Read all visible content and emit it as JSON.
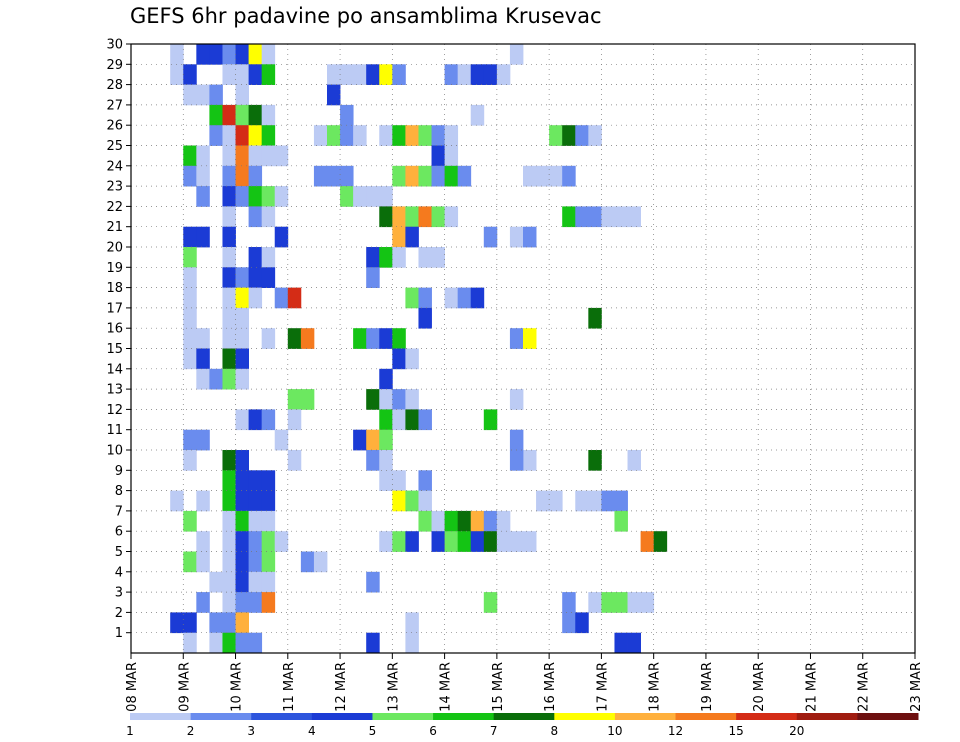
{
  "chart_data": {
    "type": "heatmap",
    "title": "GEFS 6hr padavine po ansamblima Krusevac",
    "xlabel": "",
    "ylabel": "",
    "y_ticks": [
      1,
      2,
      3,
      4,
      5,
      6,
      7,
      8,
      9,
      10,
      11,
      12,
      13,
      14,
      15,
      16,
      17,
      18,
      19,
      20,
      21,
      22,
      23,
      24,
      25,
      26,
      27,
      28,
      29,
      30
    ],
    "x_ticks": [
      "08 MAR",
      "09 MAR",
      "10 MAR",
      "11 MAR",
      "12 MAR",
      "13 MAR",
      "14 MAR",
      "15 MAR",
      "16 MAR",
      "17 MAR",
      "18 MAR",
      "19 MAR",
      "20 MAR",
      "21 MAR",
      "22 MAR",
      "23 MAR"
    ],
    "x_range": [
      0,
      60
    ],
    "y_range": [
      0,
      30
    ],
    "grid": true,
    "legend_position": "bottom",
    "color_scale": {
      "colors": [
        "#bccbf4",
        "#6a8cee",
        "#2d55dd",
        "#1b3bd5",
        "#6ce860",
        "#14c414",
        "#0a6e0a",
        "#ffff00",
        "#ffb03c",
        "#f57a1e",
        "#d42c16",
        "#a01c10",
        "#6e1010"
      ],
      "labels": [
        "1",
        "2",
        "3",
        "4",
        "5",
        "6",
        "7",
        "8",
        "10",
        "12",
        "15",
        "20"
      ]
    },
    "cells": [
      [
        3,
        30,
        0
      ],
      [
        5,
        30,
        3
      ],
      [
        6,
        30,
        3
      ],
      [
        7,
        30,
        1
      ],
      [
        8,
        30,
        3
      ],
      [
        9,
        30,
        7
      ],
      [
        10,
        30,
        0
      ],
      [
        29,
        30,
        0
      ],
      [
        3,
        29,
        0
      ],
      [
        4,
        29,
        3
      ],
      [
        7,
        29,
        0
      ],
      [
        8,
        29,
        0
      ],
      [
        9,
        29,
        3
      ],
      [
        10,
        29,
        5
      ],
      [
        15,
        29,
        0
      ],
      [
        16,
        29,
        0
      ],
      [
        17,
        29,
        0
      ],
      [
        18,
        29,
        3
      ],
      [
        19,
        29,
        7
      ],
      [
        20,
        29,
        1
      ],
      [
        24,
        29,
        1
      ],
      [
        25,
        29,
        0
      ],
      [
        26,
        29,
        3
      ],
      [
        27,
        29,
        3
      ],
      [
        28,
        29,
        0
      ],
      [
        4,
        28,
        0
      ],
      [
        5,
        28,
        0
      ],
      [
        6,
        28,
        1
      ],
      [
        8,
        28,
        0
      ],
      [
        15,
        28,
        3
      ],
      [
        6,
        27,
        5
      ],
      [
        7,
        27,
        10
      ],
      [
        8,
        27,
        4
      ],
      [
        9,
        27,
        6
      ],
      [
        10,
        27,
        0
      ],
      [
        16,
        27,
        1
      ],
      [
        26,
        27,
        0
      ],
      [
        6,
        26,
        1
      ],
      [
        7,
        26,
        0
      ],
      [
        8,
        26,
        10
      ],
      [
        9,
        26,
        7
      ],
      [
        10,
        26,
        5
      ],
      [
        14,
        26,
        0
      ],
      [
        15,
        26,
        4
      ],
      [
        16,
        26,
        1
      ],
      [
        17,
        26,
        0
      ],
      [
        19,
        26,
        0
      ],
      [
        20,
        26,
        5
      ],
      [
        21,
        26,
        8
      ],
      [
        22,
        26,
        4
      ],
      [
        23,
        26,
        1
      ],
      [
        24,
        26,
        0
      ],
      [
        32,
        26,
        4
      ],
      [
        33,
        26,
        6
      ],
      [
        34,
        26,
        1
      ],
      [
        35,
        26,
        0
      ],
      [
        4,
        25,
        5
      ],
      [
        5,
        25,
        0
      ],
      [
        7,
        25,
        0
      ],
      [
        8,
        25,
        9
      ],
      [
        9,
        25,
        0
      ],
      [
        10,
        25,
        0
      ],
      [
        11,
        25,
        0
      ],
      [
        23,
        25,
        3
      ],
      [
        24,
        25,
        0
      ],
      [
        4,
        24,
        1
      ],
      [
        5,
        24,
        0
      ],
      [
        7,
        24,
        1
      ],
      [
        8,
        24,
        9
      ],
      [
        9,
        24,
        1
      ],
      [
        14,
        24,
        1
      ],
      [
        15,
        24,
        1
      ],
      [
        16,
        24,
        1
      ],
      [
        20,
        24,
        4
      ],
      [
        21,
        24,
        8
      ],
      [
        22,
        24,
        4
      ],
      [
        23,
        24,
        1
      ],
      [
        24,
        24,
        5
      ],
      [
        25,
        24,
        1
      ],
      [
        30,
        24,
        0
      ],
      [
        31,
        24,
        0
      ],
      [
        32,
        24,
        0
      ],
      [
        33,
        24,
        1
      ],
      [
        5,
        23,
        1
      ],
      [
        7,
        23,
        3
      ],
      [
        8,
        23,
        1
      ],
      [
        9,
        23,
        5
      ],
      [
        10,
        23,
        4
      ],
      [
        11,
        23,
        0
      ],
      [
        16,
        23,
        4
      ],
      [
        17,
        23,
        0
      ],
      [
        18,
        23,
        0
      ],
      [
        19,
        23,
        0
      ],
      [
        7,
        22,
        0
      ],
      [
        9,
        22,
        1
      ],
      [
        10,
        22,
        0
      ],
      [
        19,
        22,
        6
      ],
      [
        20,
        22,
        8
      ],
      [
        21,
        22,
        4
      ],
      [
        22,
        22,
        9
      ],
      [
        23,
        22,
        4
      ],
      [
        24,
        22,
        0
      ],
      [
        33,
        22,
        5
      ],
      [
        34,
        22,
        1
      ],
      [
        35,
        22,
        1
      ],
      [
        36,
        22,
        0
      ],
      [
        37,
        22,
        0
      ],
      [
        38,
        22,
        0
      ],
      [
        4,
        21,
        3
      ],
      [
        5,
        21,
        3
      ],
      [
        7,
        21,
        3
      ],
      [
        11,
        21,
        3
      ],
      [
        20,
        21,
        8
      ],
      [
        21,
        21,
        3
      ],
      [
        27,
        21,
        1
      ],
      [
        29,
        21,
        0
      ],
      [
        30,
        21,
        1
      ],
      [
        4,
        20,
        4
      ],
      [
        7,
        20,
        0
      ],
      [
        9,
        20,
        3
      ],
      [
        10,
        20,
        0
      ],
      [
        18,
        20,
        3
      ],
      [
        19,
        20,
        5
      ],
      [
        20,
        20,
        0
      ],
      [
        22,
        20,
        0
      ],
      [
        23,
        20,
        0
      ],
      [
        4,
        19,
        0
      ],
      [
        7,
        19,
        3
      ],
      [
        8,
        19,
        1
      ],
      [
        9,
        19,
        3
      ],
      [
        10,
        19,
        3
      ],
      [
        18,
        19,
        1
      ],
      [
        4,
        18,
        0
      ],
      [
        7,
        18,
        0
      ],
      [
        8,
        18,
        7
      ],
      [
        9,
        18,
        0
      ],
      [
        11,
        18,
        1
      ],
      [
        12,
        18,
        10
      ],
      [
        21,
        18,
        4
      ],
      [
        22,
        18,
        1
      ],
      [
        24,
        18,
        0
      ],
      [
        25,
        18,
        1
      ],
      [
        26,
        18,
        3
      ],
      [
        4,
        17,
        0
      ],
      [
        7,
        17,
        0
      ],
      [
        8,
        17,
        0
      ],
      [
        22,
        17,
        3
      ],
      [
        35,
        17,
        6
      ],
      [
        4,
        16,
        0
      ],
      [
        5,
        16,
        0
      ],
      [
        7,
        16,
        0
      ],
      [
        8,
        16,
        0
      ],
      [
        10,
        16,
        0
      ],
      [
        12,
        16,
        6
      ],
      [
        13,
        16,
        9
      ],
      [
        17,
        16,
        5
      ],
      [
        18,
        16,
        1
      ],
      [
        19,
        16,
        3
      ],
      [
        20,
        16,
        5
      ],
      [
        29,
        16,
        1
      ],
      [
        30,
        16,
        7
      ],
      [
        4,
        15,
        0
      ],
      [
        5,
        15,
        3
      ],
      [
        7,
        15,
        6
      ],
      [
        8,
        15,
        3
      ],
      [
        20,
        15,
        3
      ],
      [
        21,
        15,
        0
      ],
      [
        5,
        14,
        0
      ],
      [
        6,
        14,
        1
      ],
      [
        7,
        14,
        4
      ],
      [
        8,
        14,
        0
      ],
      [
        19,
        14,
        3
      ],
      [
        12,
        13,
        4
      ],
      [
        13,
        13,
        4
      ],
      [
        18,
        13,
        6
      ],
      [
        19,
        13,
        0
      ],
      [
        20,
        13,
        1
      ],
      [
        21,
        13,
        0
      ],
      [
        29,
        13,
        0
      ],
      [
        8,
        12,
        0
      ],
      [
        9,
        12,
        3
      ],
      [
        10,
        12,
        1
      ],
      [
        12,
        12,
        0
      ],
      [
        19,
        12,
        5
      ],
      [
        20,
        12,
        0
      ],
      [
        21,
        12,
        6
      ],
      [
        22,
        12,
        1
      ],
      [
        27,
        12,
        5
      ],
      [
        4,
        11,
        1
      ],
      [
        5,
        11,
        1
      ],
      [
        11,
        11,
        0
      ],
      [
        17,
        11,
        3
      ],
      [
        18,
        11,
        8
      ],
      [
        19,
        11,
        4
      ],
      [
        29,
        11,
        1
      ],
      [
        4,
        10,
        0
      ],
      [
        7,
        10,
        6
      ],
      [
        8,
        10,
        3
      ],
      [
        12,
        10,
        0
      ],
      [
        18,
        10,
        1
      ],
      [
        19,
        10,
        0
      ],
      [
        30,
        10,
        0
      ],
      [
        35,
        10,
        6
      ],
      [
        38,
        10,
        0
      ],
      [
        29,
        10,
        1
      ],
      [
        7,
        9,
        5
      ],
      [
        8,
        9,
        3
      ],
      [
        9,
        9,
        3
      ],
      [
        10,
        9,
        3
      ],
      [
        19,
        9,
        0
      ],
      [
        20,
        9,
        0
      ],
      [
        22,
        9,
        1
      ],
      [
        3,
        8,
        0
      ],
      [
        5,
        8,
        0
      ],
      [
        7,
        8,
        5
      ],
      [
        8,
        8,
        3
      ],
      [
        9,
        8,
        3
      ],
      [
        10,
        8,
        3
      ],
      [
        20,
        8,
        7
      ],
      [
        21,
        8,
        4
      ],
      [
        22,
        8,
        0
      ],
      [
        31,
        8,
        0
      ],
      [
        32,
        8,
        0
      ],
      [
        34,
        8,
        0
      ],
      [
        35,
        8,
        0
      ],
      [
        36,
        8,
        1
      ],
      [
        37,
        8,
        1
      ],
      [
        4,
        7,
        4
      ],
      [
        7,
        7,
        0
      ],
      [
        8,
        7,
        5
      ],
      [
        9,
        7,
        0
      ],
      [
        10,
        7,
        0
      ],
      [
        22,
        7,
        4
      ],
      [
        23,
        7,
        0
      ],
      [
        24,
        7,
        5
      ],
      [
        25,
        7,
        6
      ],
      [
        26,
        7,
        8
      ],
      [
        27,
        7,
        1
      ],
      [
        28,
        7,
        0
      ],
      [
        37,
        7,
        4
      ],
      [
        5,
        6,
        0
      ],
      [
        7,
        6,
        0
      ],
      [
        8,
        6,
        3
      ],
      [
        9,
        6,
        1
      ],
      [
        10,
        6,
        4
      ],
      [
        11,
        6,
        0
      ],
      [
        19,
        6,
        0
      ],
      [
        20,
        6,
        4
      ],
      [
        21,
        6,
        3
      ],
      [
        23,
        6,
        3
      ],
      [
        24,
        6,
        4
      ],
      [
        25,
        6,
        5
      ],
      [
        26,
        6,
        3
      ],
      [
        27,
        6,
        6
      ],
      [
        28,
        6,
        0
      ],
      [
        29,
        6,
        0
      ],
      [
        30,
        6,
        0
      ],
      [
        39,
        6,
        9
      ],
      [
        40,
        6,
        6
      ],
      [
        4,
        5,
        4
      ],
      [
        5,
        5,
        0
      ],
      [
        7,
        5,
        0
      ],
      [
        8,
        5,
        3
      ],
      [
        9,
        5,
        1
      ],
      [
        10,
        5,
        4
      ],
      [
        13,
        5,
        1
      ],
      [
        14,
        5,
        0
      ],
      [
        6,
        4,
        0
      ],
      [
        7,
        4,
        0
      ],
      [
        8,
        4,
        3
      ],
      [
        9,
        4,
        0
      ],
      [
        10,
        4,
        0
      ],
      [
        18,
        4,
        1
      ],
      [
        5,
        3,
        1
      ],
      [
        7,
        3,
        0
      ],
      [
        8,
        3,
        1
      ],
      [
        9,
        3,
        1
      ],
      [
        10,
        3,
        9
      ],
      [
        27,
        3,
        4
      ],
      [
        33,
        3,
        1
      ],
      [
        35,
        3,
        0
      ],
      [
        36,
        3,
        4
      ],
      [
        37,
        3,
        4
      ],
      [
        38,
        3,
        0
      ],
      [
        39,
        3,
        0
      ],
      [
        3,
        2,
        3
      ],
      [
        4,
        2,
        3
      ],
      [
        6,
        2,
        1
      ],
      [
        7,
        2,
        1
      ],
      [
        8,
        2,
        8
      ],
      [
        21,
        2,
        0
      ],
      [
        33,
        2,
        1
      ],
      [
        34,
        2,
        3
      ],
      [
        4,
        1,
        0
      ],
      [
        6,
        1,
        0
      ],
      [
        7,
        1,
        5
      ],
      [
        8,
        1,
        1
      ],
      [
        9,
        1,
        1
      ],
      [
        18,
        1,
        3
      ],
      [
        21,
        1,
        0
      ],
      [
        37,
        1,
        3
      ],
      [
        38,
        1,
        3
      ]
    ]
  }
}
